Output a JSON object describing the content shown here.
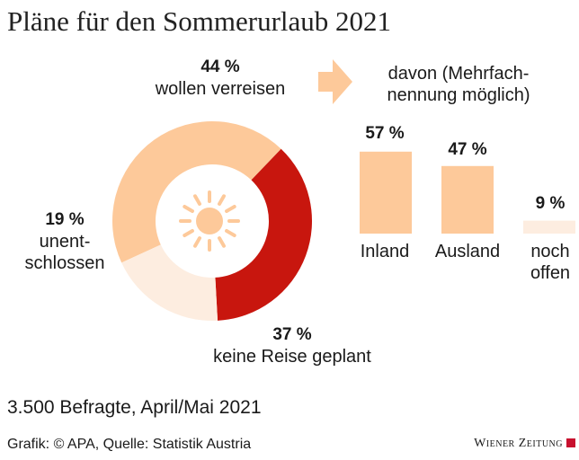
{
  "title": "Pläne für den Sommerurlaub 2021",
  "colors": {
    "travel": "#fdc99a",
    "no_travel": "#c8160e",
    "undecided": "#fdede0",
    "sun": "#fdc99a",
    "logo_square": "#c8102e"
  },
  "icons": {
    "sun": "sun-icon",
    "arrow": "arrow-right-icon"
  },
  "donut_labels": {
    "travel_pct": "44 %",
    "travel_text": "wollen verreisen",
    "undecided_pct": "19 %",
    "undecided_line1": "unent-",
    "undecided_line2": "schlossen",
    "no_travel_pct": "37 %",
    "no_travel_text": "keine Reise geplant"
  },
  "bars_header": {
    "line1": "davon (Mehrfach-",
    "line2": "nennung möglich)"
  },
  "bar_labels": {
    "inland_pct": "57 %",
    "inland": "Inland",
    "ausland_pct": "47 %",
    "ausland": "Ausland",
    "offen_pct": "9 %",
    "offen_line1": "noch",
    "offen_line2": "offen"
  },
  "chart_data": [
    {
      "type": "pie",
      "title": "Pläne für den Sommerurlaub 2021",
      "categories": [
        "wollen verreisen",
        "keine Reise geplant",
        "unentschlossen"
      ],
      "values": [
        44,
        37,
        19
      ],
      "unit": "%",
      "donut": true
    },
    {
      "type": "bar",
      "title": "davon (Mehrfachnennung möglich)",
      "categories": [
        "Inland",
        "Ausland",
        "noch offen"
      ],
      "values": [
        57,
        47,
        9
      ],
      "unit": "%"
    }
  ],
  "footer": {
    "sample": "3.500 Befragte, April/Mai 2021",
    "source": "Grafik: © APA, Quelle: Statistik Austria",
    "logo": "Wiener Zeitung"
  }
}
